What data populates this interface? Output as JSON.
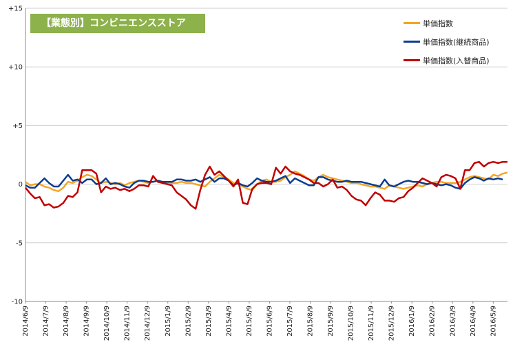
{
  "chart_data": {
    "type": "line",
    "title": "【業態別】コンビニエンスストア",
    "ylim": [
      -10,
      15
    ],
    "yticks": [
      {
        "value": 15,
        "label": "+15"
      },
      {
        "value": 10,
        "label": "+10"
      },
      {
        "value": 5,
        "label": "+5"
      },
      {
        "value": 0,
        "label": "0"
      },
      {
        "value": -5,
        "label": "-5"
      },
      {
        "value": -10,
        "label": "-10"
      }
    ],
    "xtick_labels": [
      "2014/6/9",
      "2014/7/9",
      "2014/8/9",
      "2014/9/9",
      "2014/10/9",
      "2014/11/9",
      "2014/12/9",
      "2015/1/9",
      "2015/2/9",
      "2015/3/9",
      "2015/4/9",
      "2015/5/9",
      "2015/6/9",
      "2015/7/9",
      "2015/8/9",
      "2015/9/9",
      "2015/10/9",
      "2015/11/9",
      "2015/12/9",
      "2016/1/9",
      "2016/2/9",
      "2016/3/9",
      "2016/4/9",
      "2016/5/9"
    ],
    "grid": "horizontal",
    "legend_position": "top-right",
    "series": [
      {
        "name": "単価指数",
        "color": "#f5a623",
        "values": [
          0.2,
          -0.1,
          0,
          0,
          -0.2,
          -0.3,
          -0.5,
          -0.6,
          -0.3,
          0.2,
          0.1,
          0.3,
          0.6,
          0.8,
          0.7,
          0.4,
          0.1,
          0.2,
          0.1,
          0,
          0.1,
          -0.1,
          0.1,
          0.2,
          0.3,
          0.2,
          0.1,
          0.2,
          0.3,
          0.2,
          0.1,
          0.1,
          0.1,
          0.2,
          0.1,
          0.1,
          0,
          -0.1,
          -0.2,
          0.2,
          0.5,
          0.8,
          0.6,
          0.4,
          0.1,
          0,
          -0.2,
          -0.4,
          -0.5,
          0,
          0.3,
          0.4,
          0.2,
          0.2,
          0.3,
          0.6,
          0.8,
          1.1,
          0.9,
          0.7,
          0.4,
          0.3,
          0.6,
          0.8,
          0.6,
          0.5,
          0.4,
          0.3,
          0.2,
          0.1,
          0.1,
          0,
          -0.1,
          -0.2,
          -0.2,
          -0.3,
          -0.4,
          -0.1,
          -0.2,
          -0.3,
          -0.4,
          -0.3,
          -0.2,
          -0.1,
          -0.2,
          0,
          0.1,
          0.2,
          0.2,
          0.1,
          0.1,
          0.1,
          0.2,
          0.4,
          0.6,
          0.7,
          0.6,
          0.5,
          0.4,
          0.8,
          0.7,
          0.9,
          1
        ]
      },
      {
        "name": "単価指数(継続商品)",
        "color": "#0a3d91",
        "values": [
          -0.1,
          -0.3,
          -0.3,
          0.1,
          0.5,
          0.1,
          -0.2,
          -0.2,
          0.3,
          0.8,
          0.3,
          0.4,
          0.1,
          0.4,
          0.4,
          0,
          0.1,
          0.5,
          0,
          0.1,
          0,
          -0.2,
          -0.3,
          0.1,
          0.3,
          0.3,
          0.2,
          0.2,
          0.3,
          0.2,
          0.2,
          0.2,
          0.4,
          0.4,
          0.3,
          0.3,
          0.4,
          0.2,
          0.4,
          0.6,
          0.2,
          0.5,
          0.5,
          0.3,
          -0.1,
          0.1,
          -0.1,
          -0.2,
          0.1,
          0.5,
          0.3,
          0.2,
          0.2,
          0.3,
          0.5,
          0.7,
          0.1,
          0.5,
          0.3,
          0.1,
          -0.1,
          -0.1,
          0.6,
          0.6,
          0.4,
          0.3,
          0.2,
          0.2,
          0.3,
          0.2,
          0.2,
          0.2,
          0.1,
          0,
          -0.1,
          -0.2,
          0.4,
          -0.1,
          -0.2,
          0,
          0.2,
          0.3,
          0.2,
          0.2,
          0.1,
          0,
          0.1,
          0,
          -0.1,
          0,
          -0.1,
          -0.3,
          -0.4,
          0.1,
          0.4,
          0.6,
          0.5,
          0.3,
          0.5,
          0.4,
          0.5,
          0.4
        ]
      },
      {
        "name": "単価指数(入替商品)",
        "color": "#c00000",
        "values": [
          -0.3,
          -0.8,
          -1.2,
          -1.1,
          -1.8,
          -1.7,
          -2,
          -1.9,
          -1.6,
          -1,
          -1.1,
          -0.7,
          1.2,
          1.2,
          1.2,
          0.9,
          -0.7,
          -0.2,
          -0.4,
          -0.3,
          -0.5,
          -0.4,
          -0.6,
          -0.4,
          -0.1,
          -0.1,
          -0.2,
          0.7,
          0.2,
          0.1,
          0,
          -0.1,
          -0.7,
          -1,
          -1.3,
          -1.8,
          -2.1,
          -0.5,
          0.8,
          1.5,
          0.8,
          1.1,
          0.7,
          0.3,
          -0.2,
          0.4,
          -1.6,
          -1.7,
          -0.4,
          0,
          0.1,
          0.1,
          0,
          1.4,
          0.9,
          1.5,
          1.1,
          0.9,
          0.8,
          0.6,
          0.4,
          0.1,
          0.1,
          -0.2,
          0,
          0.4,
          -0.3,
          -0.2,
          -0.5,
          -1,
          -1.3,
          -1.4,
          -1.8,
          -1.2,
          -0.7,
          -0.9,
          -1.4,
          -1.4,
          -1.5,
          -1.2,
          -1.1,
          -0.6,
          -0.3,
          0.1,
          0.5,
          0.3,
          0.1,
          -0.2,
          0.6,
          0.8,
          0.7,
          0.5,
          -0.4,
          1.2,
          1.2,
          1.8,
          1.9,
          1.5,
          1.8,
          1.9,
          1.8,
          1.9,
          1.9
        ]
      }
    ]
  }
}
